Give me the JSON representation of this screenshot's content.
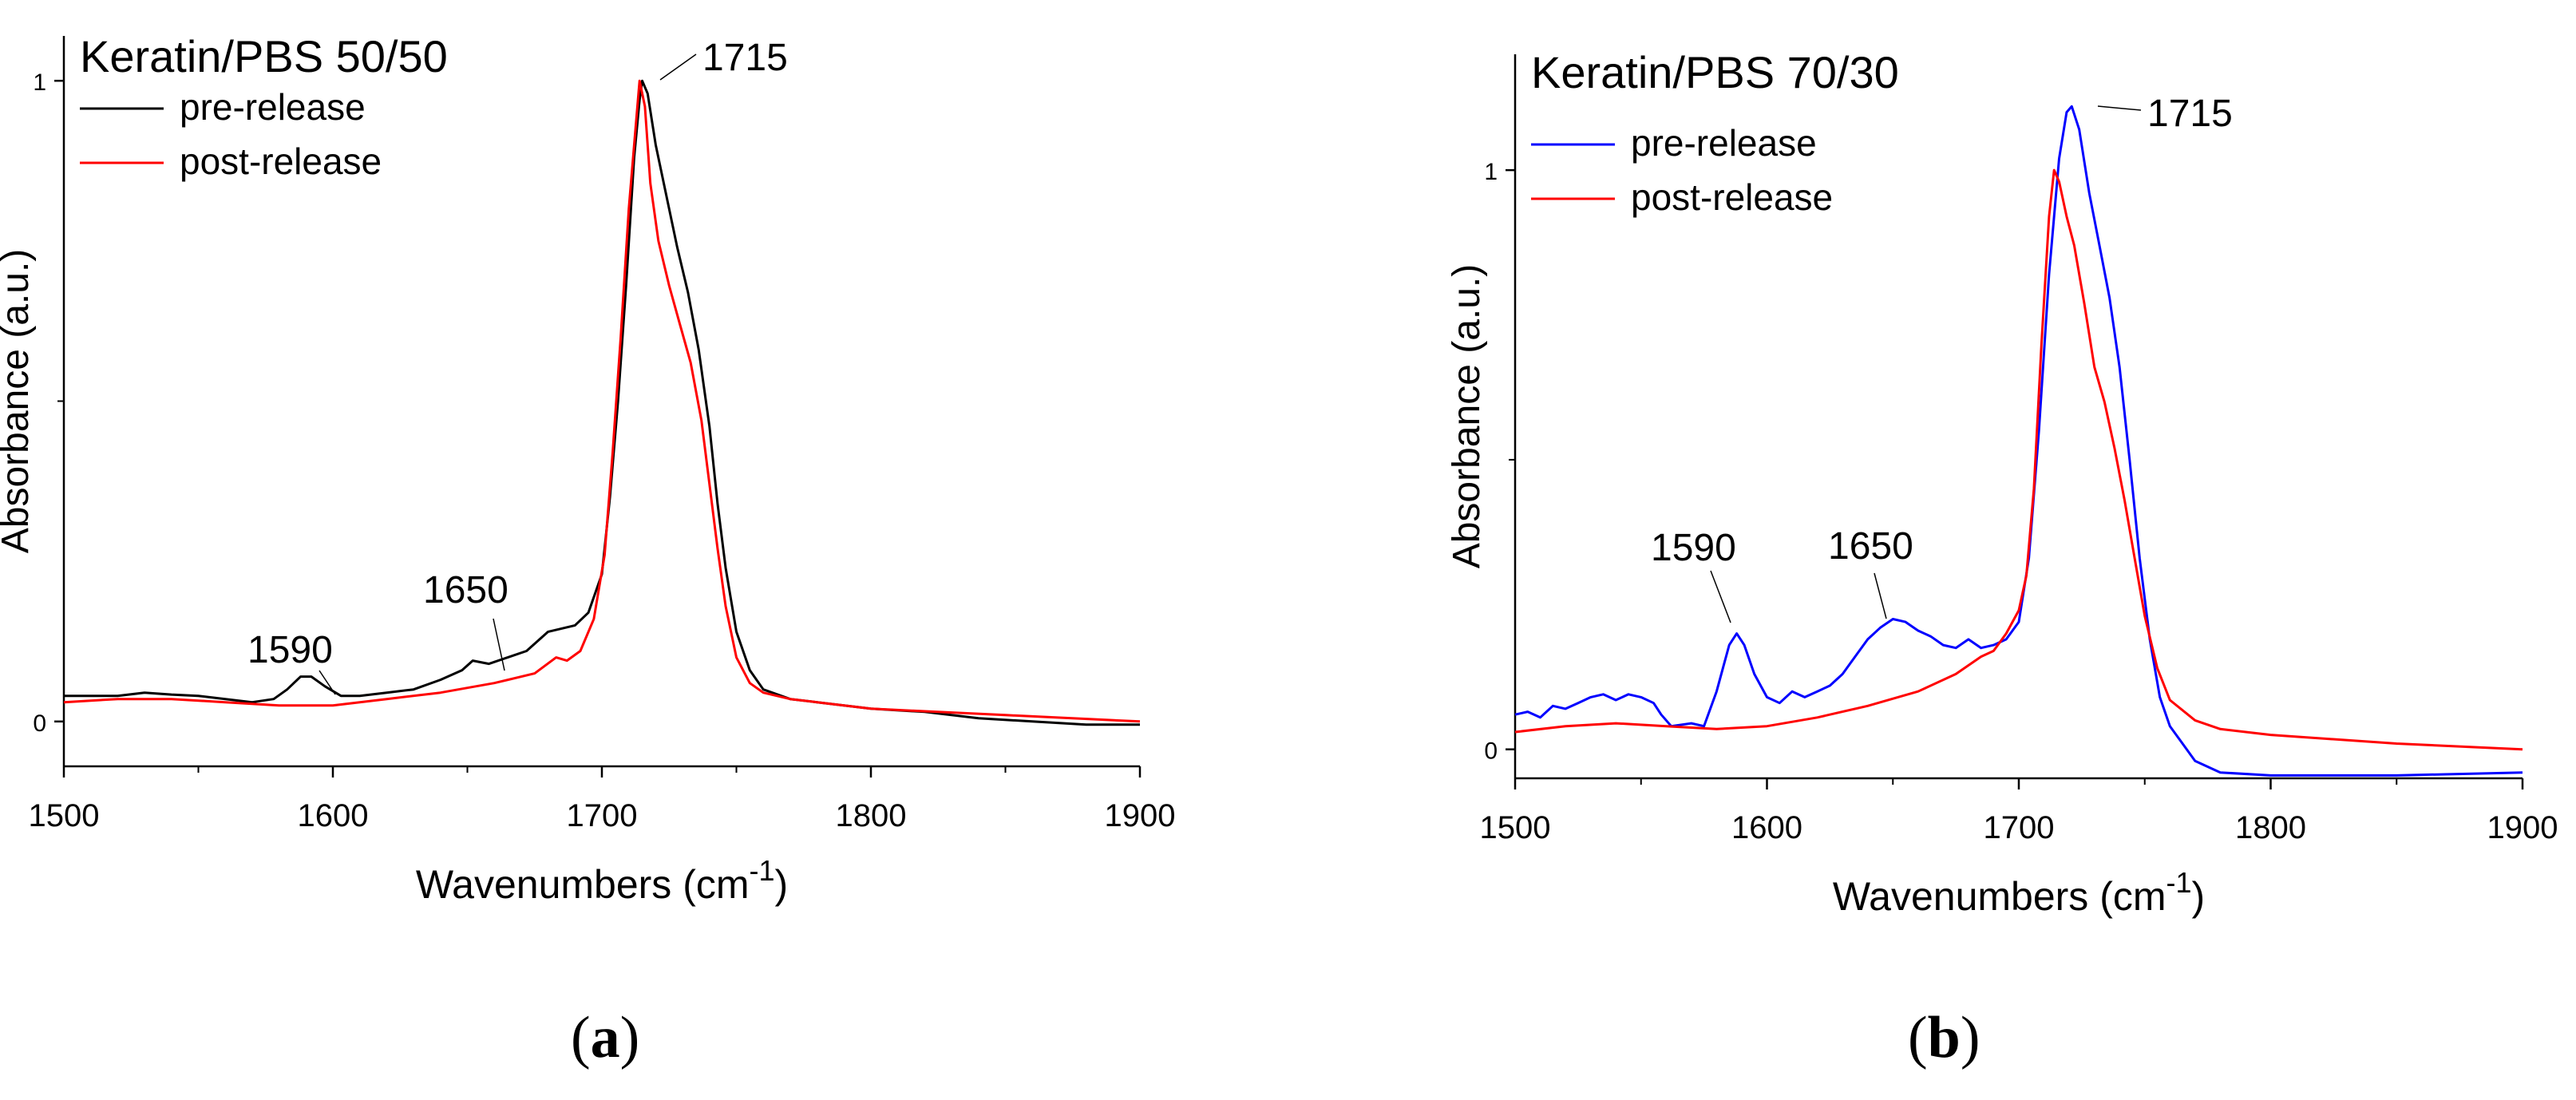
{
  "chart_data": [
    {
      "type": "line",
      "panel": "(a)",
      "panel_letter": "a",
      "title": "Keratin/PBS 50/50",
      "xlabel_main": "Wavenumbers (cm",
      "xlabel_sup": "-1",
      "xlabel_close": ")",
      "ylabel": "Absorbance (a.u.)",
      "xlim": [
        1500,
        1900
      ],
      "ylim": [
        -0.07,
        1.07
      ],
      "xticks": [
        1500,
        1600,
        1700,
        1800,
        1900
      ],
      "yticks": [
        0,
        1
      ],
      "series": [
        {
          "name": "pre-release",
          "color": "#000000",
          "points": [
            [
              1500,
              0.04
            ],
            [
              1510,
              0.04
            ],
            [
              1520,
              0.04
            ],
            [
              1530,
              0.045
            ],
            [
              1540,
              0.042
            ],
            [
              1550,
              0.04
            ],
            [
              1560,
              0.035
            ],
            [
              1570,
              0.03
            ],
            [
              1578,
              0.035
            ],
            [
              1583,
              0.05
            ],
            [
              1588,
              0.07
            ],
            [
              1592,
              0.07
            ],
            [
              1597,
              0.055
            ],
            [
              1603,
              0.04
            ],
            [
              1610,
              0.04
            ],
            [
              1620,
              0.045
            ],
            [
              1630,
              0.05
            ],
            [
              1640,
              0.065
            ],
            [
              1648,
              0.08
            ],
            [
              1652,
              0.095
            ],
            [
              1658,
              0.09
            ],
            [
              1665,
              0.1
            ],
            [
              1672,
              0.11
            ],
            [
              1680,
              0.14
            ],
            [
              1685,
              0.145
            ],
            [
              1690,
              0.15
            ],
            [
              1695,
              0.17
            ],
            [
              1700,
              0.23
            ],
            [
              1703,
              0.35
            ],
            [
              1706,
              0.5
            ],
            [
              1709,
              0.68
            ],
            [
              1712,
              0.88
            ],
            [
              1714,
              0.97
            ],
            [
              1715,
              1.0
            ],
            [
              1717,
              0.98
            ],
            [
              1720,
              0.9
            ],
            [
              1724,
              0.82
            ],
            [
              1728,
              0.74
            ],
            [
              1732,
              0.67
            ],
            [
              1736,
              0.58
            ],
            [
              1740,
              0.46
            ],
            [
              1743,
              0.34
            ],
            [
              1746,
              0.24
            ],
            [
              1750,
              0.14
            ],
            [
              1755,
              0.08
            ],
            [
              1760,
              0.05
            ],
            [
              1770,
              0.035
            ],
            [
              1780,
              0.03
            ],
            [
              1790,
              0.025
            ],
            [
              1800,
              0.02
            ],
            [
              1820,
              0.015
            ],
            [
              1840,
              0.005
            ],
            [
              1860,
              0.0
            ],
            [
              1880,
              -0.005
            ],
            [
              1900,
              -0.005
            ]
          ]
        },
        {
          "name": "post-release",
          "color": "#ff0000",
          "points": [
            [
              1500,
              0.03
            ],
            [
              1520,
              0.035
            ],
            [
              1540,
              0.035
            ],
            [
              1560,
              0.03
            ],
            [
              1580,
              0.025
            ],
            [
              1600,
              0.025
            ],
            [
              1620,
              0.035
            ],
            [
              1640,
              0.045
            ],
            [
              1660,
              0.06
            ],
            [
              1675,
              0.075
            ],
            [
              1683,
              0.1
            ],
            [
              1687,
              0.095
            ],
            [
              1692,
              0.11
            ],
            [
              1697,
              0.16
            ],
            [
              1701,
              0.26
            ],
            [
              1704,
              0.42
            ],
            [
              1707,
              0.6
            ],
            [
              1710,
              0.8
            ],
            [
              1713,
              0.95
            ],
            [
              1714,
              1.0
            ],
            [
              1716,
              0.96
            ],
            [
              1718,
              0.84
            ],
            [
              1721,
              0.75
            ],
            [
              1725,
              0.68
            ],
            [
              1729,
              0.62
            ],
            [
              1733,
              0.56
            ],
            [
              1737,
              0.47
            ],
            [
              1740,
              0.37
            ],
            [
              1743,
              0.27
            ],
            [
              1746,
              0.18
            ],
            [
              1750,
              0.1
            ],
            [
              1755,
              0.06
            ],
            [
              1760,
              0.045
            ],
            [
              1770,
              0.035
            ],
            [
              1780,
              0.03
            ],
            [
              1800,
              0.02
            ],
            [
              1850,
              0.01
            ],
            [
              1900,
              0.0
            ]
          ]
        }
      ],
      "annotations": [
        {
          "text": "1715",
          "x": 1715,
          "y": 1.0
        },
        {
          "text": "1650",
          "x": 1652,
          "y": 0.095
        },
        {
          "text": "1590",
          "x": 1590,
          "y": 0.072
        }
      ],
      "legend": "top-left"
    },
    {
      "type": "line",
      "panel": "(b)",
      "panel_letter": "b",
      "title": "Keratin/PBS 70/30",
      "xlabel_main": "Wavenumbers (cm",
      "xlabel_sup": "-1",
      "xlabel_close": ")",
      "ylabel": "Absorbance (a.u.)",
      "xlim": [
        1500,
        1900
      ],
      "ylim": [
        -0.05,
        1.2
      ],
      "xticks": [
        1500,
        1600,
        1700,
        1800,
        1900
      ],
      "yticks": [
        0,
        1
      ],
      "series": [
        {
          "name": "pre-release",
          "color": "#0000ff",
          "points": [
            [
              1500,
              0.06
            ],
            [
              1505,
              0.065
            ],
            [
              1510,
              0.055
            ],
            [
              1515,
              0.075
            ],
            [
              1520,
              0.07
            ],
            [
              1525,
              0.08
            ],
            [
              1530,
              0.09
            ],
            [
              1535,
              0.095
            ],
            [
              1540,
              0.085
            ],
            [
              1545,
              0.095
            ],
            [
              1550,
              0.09
            ],
            [
              1555,
              0.08
            ],
            [
              1558,
              0.06
            ],
            [
              1562,
              0.04
            ],
            [
              1570,
              0.045
            ],
            [
              1575,
              0.04
            ],
            [
              1580,
              0.1
            ],
            [
              1585,
              0.18
            ],
            [
              1588,
              0.2
            ],
            [
              1591,
              0.18
            ],
            [
              1595,
              0.13
            ],
            [
              1600,
              0.09
            ],
            [
              1605,
              0.08
            ],
            [
              1610,
              0.1
            ],
            [
              1615,
              0.09
            ],
            [
              1620,
              0.1
            ],
            [
              1625,
              0.11
            ],
            [
              1630,
              0.13
            ],
            [
              1635,
              0.16
            ],
            [
              1640,
              0.19
            ],
            [
              1645,
              0.21
            ],
            [
              1650,
              0.225
            ],
            [
              1655,
              0.22
            ],
            [
              1660,
              0.205
            ],
            [
              1665,
              0.195
            ],
            [
              1670,
              0.18
            ],
            [
              1675,
              0.175
            ],
            [
              1680,
              0.19
            ],
            [
              1685,
              0.175
            ],
            [
              1690,
              0.18
            ],
            [
              1695,
              0.19
            ],
            [
              1700,
              0.22
            ],
            [
              1704,
              0.33
            ],
            [
              1708,
              0.55
            ],
            [
              1712,
              0.82
            ],
            [
              1716,
              1.02
            ],
            [
              1719,
              1.1
            ],
            [
              1721,
              1.11
            ],
            [
              1724,
              1.07
            ],
            [
              1728,
              0.96
            ],
            [
              1732,
              0.87
            ],
            [
              1736,
              0.78
            ],
            [
              1740,
              0.66
            ],
            [
              1744,
              0.5
            ],
            [
              1748,
              0.33
            ],
            [
              1752,
              0.19
            ],
            [
              1756,
              0.09
            ],
            [
              1760,
              0.04
            ],
            [
              1765,
              0.01
            ],
            [
              1770,
              -0.02
            ],
            [
              1780,
              -0.04
            ],
            [
              1800,
              -0.045
            ],
            [
              1850,
              -0.045
            ],
            [
              1900,
              -0.04
            ]
          ]
        },
        {
          "name": "post-release",
          "color": "#ff0000",
          "points": [
            [
              1500,
              0.03
            ],
            [
              1520,
              0.04
            ],
            [
              1540,
              0.045
            ],
            [
              1560,
              0.04
            ],
            [
              1580,
              0.035
            ],
            [
              1600,
              0.04
            ],
            [
              1620,
              0.055
            ],
            [
              1640,
              0.075
            ],
            [
              1660,
              0.1
            ],
            [
              1675,
              0.13
            ],
            [
              1685,
              0.16
            ],
            [
              1690,
              0.17
            ],
            [
              1695,
              0.2
            ],
            [
              1700,
              0.24
            ],
            [
              1703,
              0.3
            ],
            [
              1706,
              0.45
            ],
            [
              1709,
              0.7
            ],
            [
              1712,
              0.92
            ],
            [
              1714,
              1.0
            ],
            [
              1716,
              0.98
            ],
            [
              1719,
              0.92
            ],
            [
              1722,
              0.87
            ],
            [
              1726,
              0.77
            ],
            [
              1730,
              0.66
            ],
            [
              1734,
              0.6
            ],
            [
              1738,
              0.52
            ],
            [
              1742,
              0.43
            ],
            [
              1746,
              0.33
            ],
            [
              1750,
              0.23
            ],
            [
              1755,
              0.14
            ],
            [
              1760,
              0.085
            ],
            [
              1770,
              0.05
            ],
            [
              1780,
              0.035
            ],
            [
              1800,
              0.025
            ],
            [
              1850,
              0.01
            ],
            [
              1900,
              0.0
            ]
          ]
        }
      ],
      "annotations": [
        {
          "text": "1715",
          "x": 1721,
          "y": 1.11
        },
        {
          "text": "1650",
          "x": 1650,
          "y": 0.225
        },
        {
          "text": "1590",
          "x": 1588,
          "y": 0.2
        }
      ],
      "legend": "top-left"
    }
  ]
}
